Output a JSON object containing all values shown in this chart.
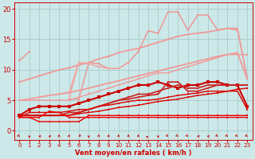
{
  "bg_color": "#cce8e8",
  "grid_color": "#aacccc",
  "xlabel": "Vent moyen/en rafales ( km/h )",
  "ylim": [
    -1.5,
    21
  ],
  "xlim": [
    -0.5,
    23.5
  ],
  "lines": [
    {
      "segments": [
        {
          "x": [
            0,
            1
          ],
          "y": [
            11.5,
            13.0
          ]
        },
        {
          "x": [
            5,
            6,
            7,
            8,
            9,
            10
          ],
          "y": [
            5.2,
            5.2,
            11.2,
            11.0,
            10.2,
            10.2
          ]
        },
        {
          "x": [
            10,
            11,
            12
          ],
          "y": [
            10.2,
            11.2,
            13.0
          ]
        },
        {
          "x": [
            12,
            13,
            14,
            15,
            16,
            17
          ],
          "y": [
            13.0,
            16.4,
            16.0,
            19.5,
            19.5,
            16.5
          ]
        },
        {
          "x": [
            17,
            18,
            19
          ],
          "y": [
            16.5,
            19.0,
            19.0
          ]
        },
        {
          "x": [
            19,
            20,
            21,
            22
          ],
          "y": [
            19.0,
            16.5,
            16.8,
            16.5
          ]
        }
      ],
      "color": "#f09090",
      "lw": 1.0,
      "marker": "s",
      "ms": 2.0
    },
    {
      "segments": [
        {
          "x": [
            0,
            1,
            2,
            3,
            4,
            5,
            6,
            7,
            8,
            9,
            10,
            11,
            12,
            13,
            14,
            15,
            16,
            17,
            18,
            19,
            20,
            21,
            22,
            23
          ],
          "y": [
            8.0,
            8.5,
            9.0,
            9.5,
            10.0,
            10.3,
            10.8,
            11.2,
            11.8,
            12.2,
            12.8,
            13.2,
            13.5,
            14.0,
            14.5,
            15.0,
            15.5,
            15.8,
            16.0,
            16.2,
            16.5,
            16.8,
            16.8,
            8.5
          ]
        }
      ],
      "color": "#f09898",
      "lw": 1.3,
      "marker": "s",
      "ms": 1.8
    },
    {
      "segments": [
        {
          "x": [
            0,
            1,
            2,
            3,
            4,
            5,
            6,
            7,
            8,
            9,
            10,
            11,
            12,
            13,
            14,
            15,
            16,
            17,
            18,
            19,
            20,
            21,
            22,
            23
          ],
          "y": [
            5.0,
            5.2,
            5.5,
            5.8,
            6.0,
            6.3,
            6.6,
            7.0,
            7.4,
            7.8,
            8.2,
            8.6,
            9.0,
            9.4,
            9.8,
            10.2,
            10.6,
            11.0,
            11.4,
            11.8,
            12.2,
            12.5,
            12.8,
            8.5
          ]
        }
      ],
      "color": "#f09898",
      "lw": 1.3,
      "marker": "s",
      "ms": 1.8
    },
    {
      "segments": [
        {
          "x": [
            0,
            1,
            2,
            3,
            4,
            5,
            6,
            7,
            8,
            9,
            10
          ],
          "y": [
            5.0,
            5.0,
            5.0,
            5.0,
            5.0,
            5.0,
            5.5,
            6.0,
            6.5,
            7.0,
            7.5
          ]
        },
        {
          "x": [
            10,
            11,
            12,
            13,
            14,
            15,
            16,
            17,
            18,
            19,
            20,
            21,
            22,
            23
          ],
          "y": [
            7.5,
            8.0,
            8.5,
            9.0,
            9.5,
            9.5,
            10.0,
            10.5,
            11.0,
            11.5,
            12.0,
            12.5,
            12.5,
            12.5
          ]
        }
      ],
      "color": "#f09898",
      "lw": 1.0,
      "marker": "s",
      "ms": 2.0
    },
    {
      "segments": [
        {
          "x": [
            0,
            1,
            2,
            3,
            4,
            5,
            6,
            7,
            8,
            9,
            10
          ],
          "y": [
            5.0,
            5.2,
            5.5,
            5.8,
            6.0,
            6.2,
            11.2,
            11.0,
            10.5,
            10.2,
            10.2
          ]
        },
        {
          "x": [
            5,
            6,
            7
          ],
          "y": [
            5.2,
            11.2,
            11.0
          ]
        }
      ],
      "color": "#f4a0a0",
      "lw": 1.0,
      "marker": "s",
      "ms": 2.0
    },
    {
      "segments": [
        {
          "x": [
            0,
            1,
            2,
            3,
            4,
            5,
            6,
            7,
            8,
            9,
            10,
            11,
            12,
            13,
            14,
            15,
            16,
            17,
            18,
            19,
            20,
            21,
            22,
            23
          ],
          "y": [
            2.5,
            3.5,
            4.0,
            4.0,
            4.0,
            4.0,
            4.5,
            5.0,
            5.5,
            6.0,
            6.5,
            7.0,
            7.5,
            7.5,
            8.0,
            7.5,
            7.0,
            7.5,
            7.5,
            8.0,
            8.0,
            7.5,
            7.5,
            4.0
          ]
        }
      ],
      "color": "#cc0000",
      "lw": 1.5,
      "marker": "s",
      "ms": 2.5
    },
    {
      "segments": [
        {
          "x": [
            0,
            1,
            2,
            3,
            4,
            5,
            6,
            7,
            8,
            9,
            10,
            11,
            12,
            13,
            14,
            15,
            16,
            17,
            18,
            19,
            20,
            21,
            22,
            23
          ],
          "y": [
            2.5,
            2.5,
            2.5,
            2.5,
            2.5,
            3.0,
            3.0,
            3.5,
            4.0,
            4.5,
            5.0,
            5.5,
            6.0,
            6.0,
            6.5,
            7.0,
            7.5,
            7.0,
            7.0,
            7.5,
            7.5,
            7.5,
            7.5,
            7.5
          ]
        }
      ],
      "color": "#cc2222",
      "lw": 1.2,
      "marker": "s",
      "ms": 2.0
    },
    {
      "segments": [
        {
          "x": [
            0,
            1,
            2,
            3,
            4,
            5,
            6,
            7,
            8,
            9,
            10,
            11,
            12,
            13,
            14,
            15,
            16,
            17,
            18,
            19,
            20,
            21,
            22,
            23
          ],
          "y": [
            2.5,
            2.5,
            2.5,
            2.5,
            2.5,
            2.5,
            3.0,
            3.5,
            4.0,
            4.5,
            5.0,
            5.2,
            5.5,
            5.8,
            6.0,
            8.0,
            8.0,
            6.5,
            6.5,
            7.0,
            7.5,
            7.5,
            7.5,
            7.5
          ]
        }
      ],
      "color": "#cc2222",
      "lw": 1.2,
      "marker": "s",
      "ms": 2.0
    },
    {
      "segments": [
        {
          "x": [
            0,
            1,
            2,
            3,
            4,
            5,
            6,
            7,
            8,
            9,
            10,
            11,
            12,
            13,
            14,
            15,
            16,
            17,
            18,
            19,
            20,
            21,
            22,
            23
          ],
          "y": [
            2.5,
            2.5,
            2.5,
            2.5,
            2.5,
            2.5,
            2.8,
            3.0,
            3.2,
            3.5,
            3.8,
            4.0,
            4.2,
            4.5,
            4.8,
            5.0,
            5.2,
            5.5,
            5.8,
            6.0,
            6.2,
            6.5,
            6.8,
            7.0
          ]
        }
      ],
      "color": "#dd0000",
      "lw": 1.0,
      "marker": "s",
      "ms": 2.0
    },
    {
      "segments": [
        {
          "x": [
            0,
            1,
            2,
            3,
            4,
            5,
            6,
            7,
            8,
            9,
            10,
            11,
            12,
            13,
            14,
            15,
            16,
            17,
            18,
            19,
            20,
            21,
            22,
            23
          ],
          "y": [
            2.2,
            3.0,
            3.0,
            3.0,
            3.0,
            3.2,
            3.5,
            3.5,
            4.0,
            4.2,
            4.5,
            4.8,
            5.0,
            5.0,
            5.2,
            5.5,
            5.8,
            6.0,
            6.2,
            6.5,
            6.5,
            6.5,
            6.5,
            3.5
          ]
        }
      ],
      "color": "#dd0000",
      "lw": 1.0,
      "marker": "s",
      "ms": 2.0
    },
    {
      "segments": [
        {
          "x": [
            0,
            1,
            2,
            3,
            4,
            5,
            6,
            7,
            8,
            9,
            10,
            11,
            12,
            13,
            14,
            15,
            16,
            17,
            18,
            19,
            20,
            21,
            22,
            23
          ],
          "y": [
            2.2,
            2.2,
            2.2,
            3.2,
            3.0,
            2.2,
            2.2,
            2.2,
            2.2,
            2.2,
            2.2,
            2.2,
            2.2,
            2.2,
            2.2,
            2.2,
            2.2,
            2.2,
            2.2,
            2.2,
            2.2,
            2.2,
            2.2,
            2.2
          ]
        }
      ],
      "color": "#ee0000",
      "lw": 1.0,
      "marker": "s",
      "ms": 2.0
    },
    {
      "segments": [
        {
          "x": [
            0,
            1,
            2,
            3,
            4,
            5,
            6,
            7,
            8,
            9,
            10,
            11,
            12,
            13,
            14,
            15,
            16,
            17,
            18,
            19,
            20,
            21,
            22,
            23
          ],
          "y": [
            2.2,
            2.2,
            1.5,
            1.5,
            1.5,
            1.5,
            1.5,
            2.5,
            2.5,
            2.5,
            2.5,
            2.5,
            2.5,
            2.5,
            2.5,
            2.5,
            2.5,
            2.5,
            2.5,
            2.5,
            2.5,
            2.5,
            2.5,
            2.5
          ]
        }
      ],
      "color": "#ee0000",
      "lw": 1.0,
      "marker": "s",
      "ms": 2.0
    }
  ],
  "wind_arrows": [
    45,
    0,
    -90,
    -90,
    180,
    180,
    -45,
    0,
    180,
    180,
    180,
    180,
    180,
    135,
    0,
    45,
    45,
    45,
    -90,
    -90,
    45,
    45,
    45,
    45
  ],
  "tick_color": "#cc0000",
  "axis_color": "#cc0000",
  "label_color": "#cc0000"
}
